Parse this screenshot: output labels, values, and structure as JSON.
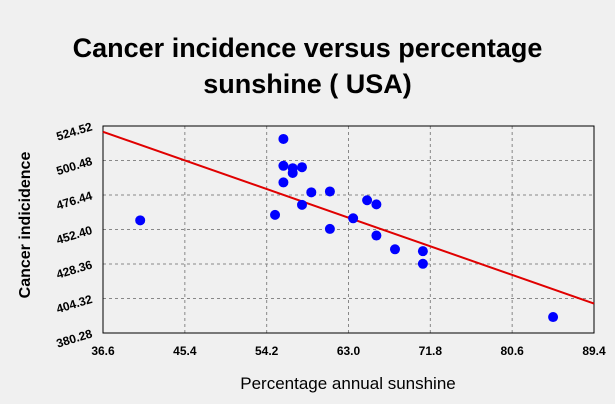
{
  "chart_data": {
    "type": "scatter",
    "title_lines": [
      "Cancer incidence versus percentage",
      "sunshine ( USA)"
    ],
    "xlabel": "Percentage annual sunshine",
    "ylabel": "Cancer indicidence",
    "xlim": [
      36.6,
      89.4
    ],
    "ylim": [
      380.28,
      524.52
    ],
    "xticks": [
      "36.6",
      "45.4",
      "54.2",
      "63.0",
      "71.8",
      "80.6",
      "89.4"
    ],
    "yticks": [
      "380.28",
      "404.32",
      "428.36",
      "452.40",
      "476.44",
      "500.48",
      "524.52"
    ],
    "grid": true,
    "points": [
      {
        "x": 40.6,
        "y": 458.8
      },
      {
        "x": 55.1,
        "y": 462.6
      },
      {
        "x": 56.0,
        "y": 515.5
      },
      {
        "x": 56.0,
        "y": 496.8
      },
      {
        "x": 56.0,
        "y": 485.2
      },
      {
        "x": 57.0,
        "y": 491.8
      },
      {
        "x": 57.0,
        "y": 495.1
      },
      {
        "x": 58.0,
        "y": 495.8
      },
      {
        "x": 58.0,
        "y": 469.6
      },
      {
        "x": 59.0,
        "y": 478.3
      },
      {
        "x": 61.0,
        "y": 478.9
      },
      {
        "x": 61.0,
        "y": 452.8
      },
      {
        "x": 63.5,
        "y": 460.2
      },
      {
        "x": 65.0,
        "y": 472.8
      },
      {
        "x": 66.0,
        "y": 469.9
      },
      {
        "x": 66.0,
        "y": 448.2
      },
      {
        "x": 68.0,
        "y": 438.6
      },
      {
        "x": 71.0,
        "y": 437.3
      },
      {
        "x": 71.0,
        "y": 428.5
      },
      {
        "x": 85.0,
        "y": 391.4
      }
    ],
    "trendline": {
      "x": [
        36.6,
        89.4
      ],
      "y": [
        520.5,
        400.8
      ]
    },
    "colors": {
      "points": "#0000ff",
      "trendline": "#e00000",
      "grid": "#888888",
      "background": "#f0f0f0"
    }
  }
}
